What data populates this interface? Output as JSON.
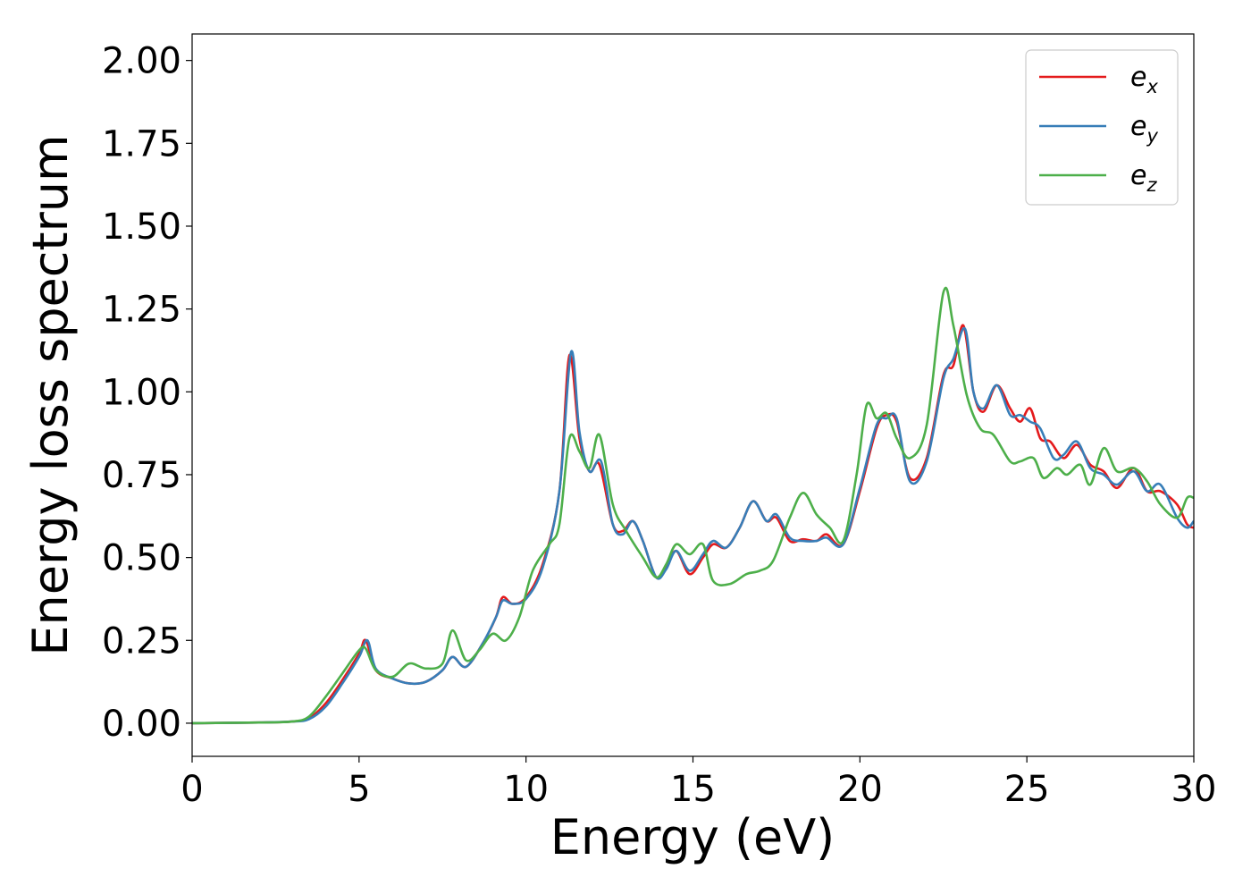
{
  "chart_data": {
    "type": "line",
    "xlabel": "Energy (eV)",
    "ylabel": "Energy loss spectrum",
    "xlim": [
      0,
      30
    ],
    "ylim": [
      -0.1,
      2.08
    ],
    "xticks": [
      0,
      5,
      10,
      15,
      20,
      25,
      30
    ],
    "xtick_labels": [
      "0",
      "5",
      "10",
      "15",
      "20",
      "25",
      "30"
    ],
    "yticks": [
      0,
      0.25,
      0.5,
      0.75,
      1.0,
      1.25,
      1.5,
      1.75,
      2.0
    ],
    "ytick_labels": [
      "0.00",
      "0.25",
      "0.50",
      "0.75",
      "1.00",
      "1.25",
      "1.50",
      "1.75",
      "2.00"
    ],
    "grid": false,
    "legend_position": "top-right",
    "series": [
      {
        "name": "e_x",
        "label_base": "e",
        "label_sub": "x",
        "color": "#e41a1c",
        "points": [
          [
            0,
            0
          ],
          [
            2,
            0.002
          ],
          [
            3,
            0.005
          ],
          [
            3.5,
            0.015
          ],
          [
            4,
            0.06
          ],
          [
            4.5,
            0.13
          ],
          [
            5,
            0.21
          ],
          [
            5.2,
            0.25
          ],
          [
            5.5,
            0.16
          ],
          [
            6,
            0.135
          ],
          [
            6.5,
            0.12
          ],
          [
            7,
            0.125
          ],
          [
            7.5,
            0.16
          ],
          [
            7.8,
            0.2
          ],
          [
            8.2,
            0.17
          ],
          [
            8.7,
            0.24
          ],
          [
            9.1,
            0.32
          ],
          [
            9.3,
            0.38
          ],
          [
            9.6,
            0.36
          ],
          [
            10,
            0.38
          ],
          [
            10.5,
            0.48
          ],
          [
            11,
            0.7
          ],
          [
            11.3,
            1.11
          ],
          [
            11.6,
            0.86
          ],
          [
            11.9,
            0.76
          ],
          [
            12.2,
            0.78
          ],
          [
            12.6,
            0.6
          ],
          [
            12.9,
            0.58
          ],
          [
            13.2,
            0.61
          ],
          [
            13.5,
            0.55
          ],
          [
            13.9,
            0.44
          ],
          [
            14.2,
            0.47
          ],
          [
            14.5,
            0.52
          ],
          [
            14.9,
            0.45
          ],
          [
            15.3,
            0.5
          ],
          [
            15.6,
            0.54
          ],
          [
            16,
            0.53
          ],
          [
            16.4,
            0.59
          ],
          [
            16.8,
            0.67
          ],
          [
            17.2,
            0.61
          ],
          [
            17.5,
            0.62
          ],
          [
            17.9,
            0.55
          ],
          [
            18.3,
            0.555
          ],
          [
            18.7,
            0.55
          ],
          [
            19,
            0.57
          ],
          [
            19.5,
            0.54
          ],
          [
            20,
            0.7
          ],
          [
            20.5,
            0.89
          ],
          [
            20.8,
            0.93
          ],
          [
            21.1,
            0.91
          ],
          [
            21.5,
            0.74
          ],
          [
            22,
            0.8
          ],
          [
            22.5,
            1.05
          ],
          [
            22.8,
            1.08
          ],
          [
            23.1,
            1.2
          ],
          [
            23.4,
            1.0
          ],
          [
            23.7,
            0.94
          ],
          [
            24.1,
            1.02
          ],
          [
            24.5,
            0.95
          ],
          [
            24.8,
            0.91
          ],
          [
            25.1,
            0.95
          ],
          [
            25.4,
            0.86
          ],
          [
            25.7,
            0.85
          ],
          [
            26.1,
            0.8
          ],
          [
            26.5,
            0.84
          ],
          [
            26.9,
            0.78
          ],
          [
            27.3,
            0.76
          ],
          [
            27.7,
            0.71
          ],
          [
            28.2,
            0.77
          ],
          [
            28.6,
            0.7
          ],
          [
            29,
            0.7
          ],
          [
            29.5,
            0.66
          ],
          [
            29.8,
            0.6
          ],
          [
            30,
            0.59
          ]
        ]
      },
      {
        "name": "e_y",
        "label_base": "e",
        "label_sub": "y",
        "color": "#377eb8",
        "points": [
          [
            0,
            0
          ],
          [
            2,
            0.002
          ],
          [
            3,
            0.005
          ],
          [
            3.5,
            0.012
          ],
          [
            4,
            0.05
          ],
          [
            4.5,
            0.12
          ],
          [
            5,
            0.2
          ],
          [
            5.25,
            0.25
          ],
          [
            5.5,
            0.165
          ],
          [
            6,
            0.135
          ],
          [
            6.5,
            0.12
          ],
          [
            7,
            0.125
          ],
          [
            7.5,
            0.16
          ],
          [
            7.8,
            0.2
          ],
          [
            8.2,
            0.17
          ],
          [
            8.7,
            0.24
          ],
          [
            9.1,
            0.32
          ],
          [
            9.3,
            0.37
          ],
          [
            9.6,
            0.36
          ],
          [
            10,
            0.375
          ],
          [
            10.5,
            0.47
          ],
          [
            11,
            0.7
          ],
          [
            11.35,
            1.12
          ],
          [
            11.6,
            0.88
          ],
          [
            11.9,
            0.76
          ],
          [
            12.25,
            0.79
          ],
          [
            12.6,
            0.6
          ],
          [
            12.9,
            0.57
          ],
          [
            13.2,
            0.61
          ],
          [
            13.5,
            0.55
          ],
          [
            13.9,
            0.44
          ],
          [
            14.2,
            0.465
          ],
          [
            14.5,
            0.52
          ],
          [
            14.9,
            0.46
          ],
          [
            15.3,
            0.51
          ],
          [
            15.6,
            0.55
          ],
          [
            16,
            0.53
          ],
          [
            16.4,
            0.59
          ],
          [
            16.8,
            0.67
          ],
          [
            17.2,
            0.61
          ],
          [
            17.5,
            0.63
          ],
          [
            17.9,
            0.56
          ],
          [
            18.3,
            0.55
          ],
          [
            18.7,
            0.55
          ],
          [
            19,
            0.56
          ],
          [
            19.5,
            0.54
          ],
          [
            20,
            0.71
          ],
          [
            20.5,
            0.9
          ],
          [
            20.8,
            0.92
          ],
          [
            21.1,
            0.92
          ],
          [
            21.5,
            0.73
          ],
          [
            22,
            0.79
          ],
          [
            22.5,
            1.04
          ],
          [
            22.8,
            1.1
          ],
          [
            23.15,
            1.19
          ],
          [
            23.4,
            1.0
          ],
          [
            23.7,
            0.95
          ],
          [
            24.1,
            1.02
          ],
          [
            24.5,
            0.93
          ],
          [
            24.8,
            0.93
          ],
          [
            25.1,
            0.91
          ],
          [
            25.4,
            0.89
          ],
          [
            25.8,
            0.8
          ],
          [
            26.1,
            0.81
          ],
          [
            26.5,
            0.85
          ],
          [
            26.9,
            0.77
          ],
          [
            27.3,
            0.75
          ],
          [
            27.7,
            0.72
          ],
          [
            28.2,
            0.76
          ],
          [
            28.6,
            0.7
          ],
          [
            29,
            0.72
          ],
          [
            29.5,
            0.62
          ],
          [
            29.8,
            0.59
          ],
          [
            30,
            0.61
          ]
        ]
      },
      {
        "name": "e_z",
        "label_base": "e",
        "label_sub": "z",
        "color": "#4daf4a",
        "points": [
          [
            0,
            0
          ],
          [
            2,
            0.002
          ],
          [
            3,
            0.005
          ],
          [
            3.5,
            0.02
          ],
          [
            4,
            0.08
          ],
          [
            4.5,
            0.15
          ],
          [
            5,
            0.22
          ],
          [
            5.2,
            0.225
          ],
          [
            5.5,
            0.16
          ],
          [
            6,
            0.14
          ],
          [
            6.5,
            0.18
          ],
          [
            7,
            0.165
          ],
          [
            7.5,
            0.18
          ],
          [
            7.8,
            0.28
          ],
          [
            8.2,
            0.19
          ],
          [
            8.6,
            0.22
          ],
          [
            9,
            0.27
          ],
          [
            9.4,
            0.25
          ],
          [
            9.8,
            0.32
          ],
          [
            10.2,
            0.46
          ],
          [
            10.7,
            0.54
          ],
          [
            11,
            0.6
          ],
          [
            11.3,
            0.86
          ],
          [
            11.6,
            0.82
          ],
          [
            11.9,
            0.77
          ],
          [
            12.2,
            0.87
          ],
          [
            12.6,
            0.66
          ],
          [
            13,
            0.58
          ],
          [
            13.5,
            0.5
          ],
          [
            13.9,
            0.44
          ],
          [
            14.2,
            0.48
          ],
          [
            14.5,
            0.54
          ],
          [
            14.9,
            0.51
          ],
          [
            15.3,
            0.54
          ],
          [
            15.6,
            0.43
          ],
          [
            16.1,
            0.42
          ],
          [
            16.6,
            0.45
          ],
          [
            17,
            0.46
          ],
          [
            17.4,
            0.49
          ],
          [
            17.9,
            0.62
          ],
          [
            18.3,
            0.695
          ],
          [
            18.7,
            0.63
          ],
          [
            19.1,
            0.59
          ],
          [
            19.5,
            0.55
          ],
          [
            19.9,
            0.75
          ],
          [
            20.2,
            0.96
          ],
          [
            20.5,
            0.92
          ],
          [
            20.8,
            0.935
          ],
          [
            21.1,
            0.86
          ],
          [
            21.5,
            0.8
          ],
          [
            22,
            0.9
          ],
          [
            22.5,
            1.3
          ],
          [
            22.8,
            1.2
          ],
          [
            23.2,
            0.99
          ],
          [
            23.6,
            0.89
          ],
          [
            24,
            0.87
          ],
          [
            24.5,
            0.79
          ],
          [
            24.8,
            0.79
          ],
          [
            25.2,
            0.8
          ],
          [
            25.5,
            0.74
          ],
          [
            25.9,
            0.77
          ],
          [
            26.2,
            0.75
          ],
          [
            26.6,
            0.78
          ],
          [
            26.9,
            0.72
          ],
          [
            27.3,
            0.83
          ],
          [
            27.7,
            0.76
          ],
          [
            28.2,
            0.77
          ],
          [
            28.6,
            0.73
          ],
          [
            29,
            0.66
          ],
          [
            29.5,
            0.62
          ],
          [
            29.8,
            0.68
          ],
          [
            30,
            0.68
          ]
        ]
      }
    ]
  }
}
